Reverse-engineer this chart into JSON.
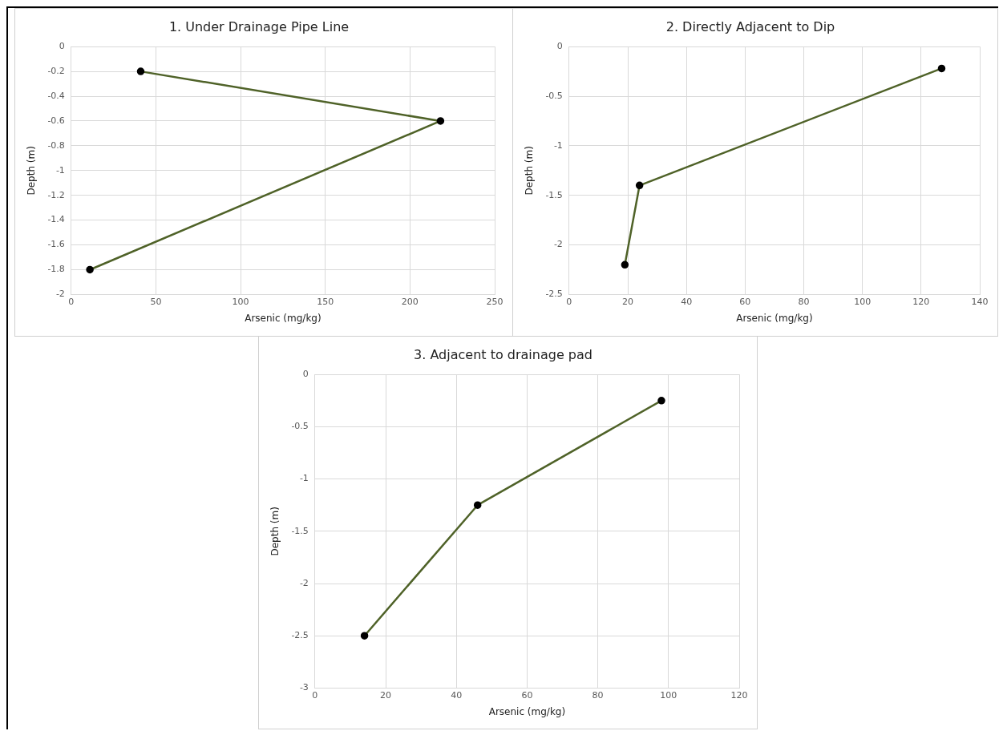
{
  "chart_data": [
    {
      "type": "line",
      "title": "1. Under Drainage Pipe Line",
      "xlabel": "Arsenic (mg/kg)",
      "ylabel": "Depth (m)",
      "marker": "circle",
      "grid": true,
      "xlim": [
        0,
        250
      ],
      "xticks": [
        0,
        50,
        100,
        150,
        200,
        250
      ],
      "ylim": [
        -2,
        0
      ],
      "yticks": [
        -2,
        -1.8,
        -1.6,
        -1.4,
        -1.2,
        -1,
        -0.8,
        -0.6,
        -0.4,
        -0.2,
        0
      ],
      "series": [
        {
          "color": "#4f6228",
          "x": [
            41,
            218,
            11
          ],
          "values": [
            -0.2,
            -0.6,
            -1.8
          ]
        }
      ]
    },
    {
      "type": "line",
      "title": "2. Directly Adjacent to Dip",
      "xlabel": "Arsenic (mg/kg)",
      "ylabel": "Depth (m)",
      "marker": "circle",
      "grid": true,
      "xlim": [
        0,
        140
      ],
      "xticks": [
        0,
        20,
        40,
        60,
        80,
        100,
        120,
        140
      ],
      "ylim": [
        -2.5,
        0
      ],
      "yticks": [
        -2.5,
        -2,
        -1.5,
        -1,
        -0.5,
        0
      ],
      "series": [
        {
          "color": "#4f6228",
          "x": [
            127,
            24,
            19
          ],
          "values": [
            -0.22,
            -1.4,
            -2.2
          ]
        }
      ]
    },
    {
      "type": "line",
      "title": "3. Adjacent to drainage pad",
      "xlabel": "Arsenic (mg/kg)",
      "ylabel": "Depth (m)",
      "marker": "circle",
      "grid": true,
      "xlim": [
        0,
        120
      ],
      "xticks": [
        0,
        20,
        40,
        60,
        80,
        100,
        120
      ],
      "ylim": [
        -3,
        0
      ],
      "yticks": [
        -3,
        -2.5,
        -2,
        -1.5,
        -1,
        -0.5,
        0
      ],
      "series": [
        {
          "color": "#4f6228",
          "x": [
            98,
            46,
            14
          ],
          "values": [
            -0.25,
            -1.25,
            -2.5
          ]
        }
      ]
    }
  ]
}
